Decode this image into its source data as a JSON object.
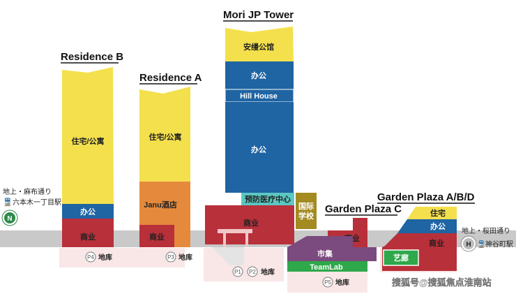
{
  "buildings": {
    "residence_b": {
      "title": "Residence B",
      "floors": [
        "住宅/公寓",
        "办公",
        "商业"
      ]
    },
    "residence_a": {
      "title": "Residence A",
      "floors": [
        "住宅/公寓",
        "Janu酒店",
        "商业"
      ]
    },
    "mori_tower": {
      "title": "Mori JP Tower",
      "floors": [
        "安缦公馆",
        "办公",
        "Hill House",
        "办公",
        "预防医疗中心",
        "商业"
      ]
    },
    "school": {
      "label": "国际\n学校"
    },
    "garden_plaza_c": {
      "title": "Garden Plaza C",
      "floors": [
        "商业"
      ]
    },
    "garden_plaza_abd": {
      "title": "Garden Plaza A/B/D",
      "floors": [
        "住宅",
        "办公",
        "商业",
        "艺廊"
      ]
    },
    "market": {
      "label": "市集"
    },
    "teamlab": {
      "label": "TeamLab"
    }
  },
  "parking": {
    "p4": {
      "code": "P4",
      "label": "地库"
    },
    "p3": {
      "code": "P3",
      "label": "地库"
    },
    "p1": {
      "code": "P1"
    },
    "p2": {
      "code": "P2",
      "label": "地库"
    },
    "p5": {
      "code": "P5",
      "label": "地库"
    }
  },
  "stations": {
    "left": {
      "line1": "地上・麻布通り",
      "line2": "六本木一丁目駅",
      "badge": "N"
    },
    "right": {
      "line1": "地上・桜田通り",
      "line2": "神谷町駅",
      "badge": "H"
    }
  },
  "watermark": "搜狐号@搜狐焦点淮南站",
  "colors": {
    "yellow": "#f4e04d",
    "blue": "#1f64a3",
    "red": "#b8303a",
    "orange": "#e58a3c",
    "olive": "#a38b22",
    "purple": "#7b4a7e",
    "green": "#2ea84a",
    "teal": "#5bc7c2",
    "ground": "#c9c9c9",
    "basement": "#f6dede"
  }
}
